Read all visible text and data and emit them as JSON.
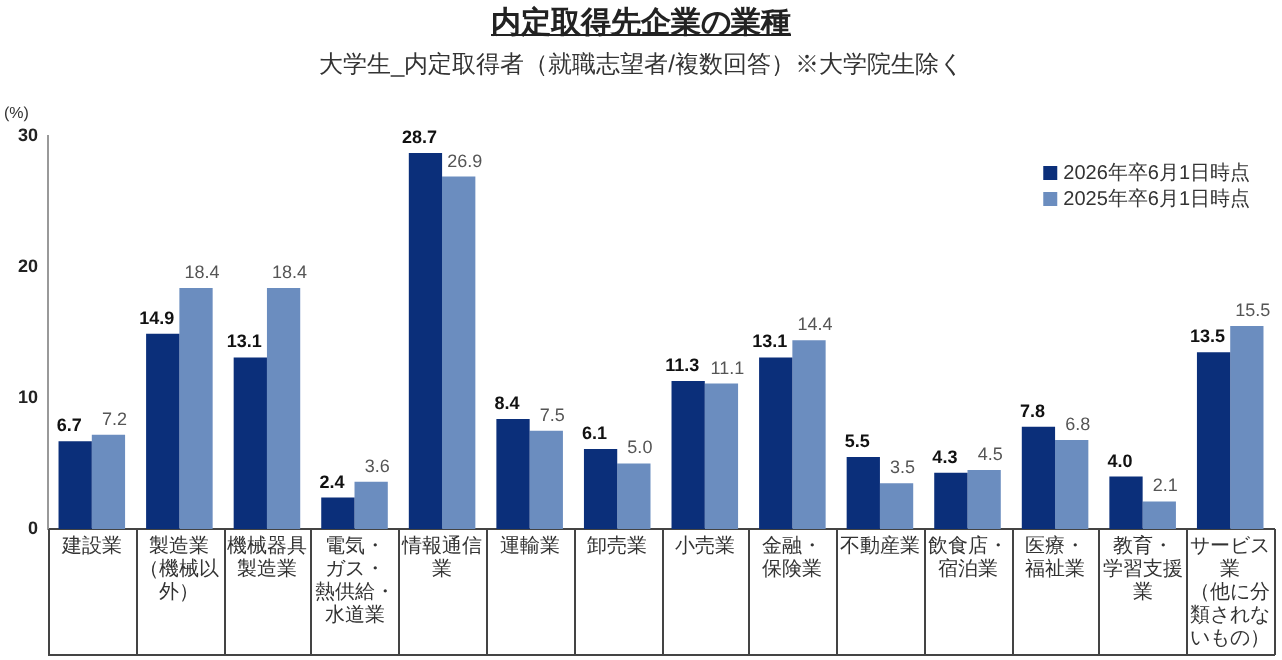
{
  "chart_data": {
    "type": "bar",
    "title": "内定取得先企業の業種",
    "subtitle": "大学生_内定取得者（就職志望者/複数回答）※大学院生除く",
    "ylabel": "(%)",
    "categories": [
      "建設業",
      "製造業（機械以外）",
      "機械器具製造業",
      "電気・ガス・熱供給・水道業",
      "情報通信業",
      "運輸業",
      "卸売業",
      "小売業",
      "金融・保険業",
      "不動産業",
      "飲食店・宿泊業",
      "医療・福祉業",
      "教育・学習支援業",
      "サービス業（他に分類されないもの）"
    ],
    "series": [
      {
        "name": "2026年卒6月1日時点",
        "color": "#0b2f7a",
        "values": [
          6.7,
          14.9,
          13.1,
          2.4,
          28.7,
          8.4,
          6.1,
          11.3,
          13.1,
          5.5,
          4.3,
          7.8,
          4.0,
          13.5
        ],
        "value_labels": [
          "6.7",
          "14.9",
          "13.1",
          "2.4",
          "28.7",
          "8.4",
          "6.1",
          "11.3",
          "13.1",
          "5.5",
          "4.3",
          "7.8",
          "4.0",
          "13.5"
        ]
      },
      {
        "name": "2025年卒6月1日時点",
        "color": "#6b8dbf",
        "values": [
          7.2,
          18.4,
          18.4,
          3.6,
          26.9,
          7.5,
          5.0,
          11.1,
          14.4,
          3.5,
          4.5,
          6.8,
          2.1,
          15.5
        ],
        "value_labels": [
          "7.2",
          "18.4",
          "18.4",
          "3.6",
          "26.9",
          "7.5",
          "5.0",
          "11.1",
          "14.4",
          "3.5",
          "4.5",
          "6.8",
          "2.1",
          "15.5"
        ]
      }
    ],
    "ylim": [
      0,
      30
    ],
    "yticks": [
      0,
      10,
      20,
      30
    ],
    "legend": "top right"
  }
}
